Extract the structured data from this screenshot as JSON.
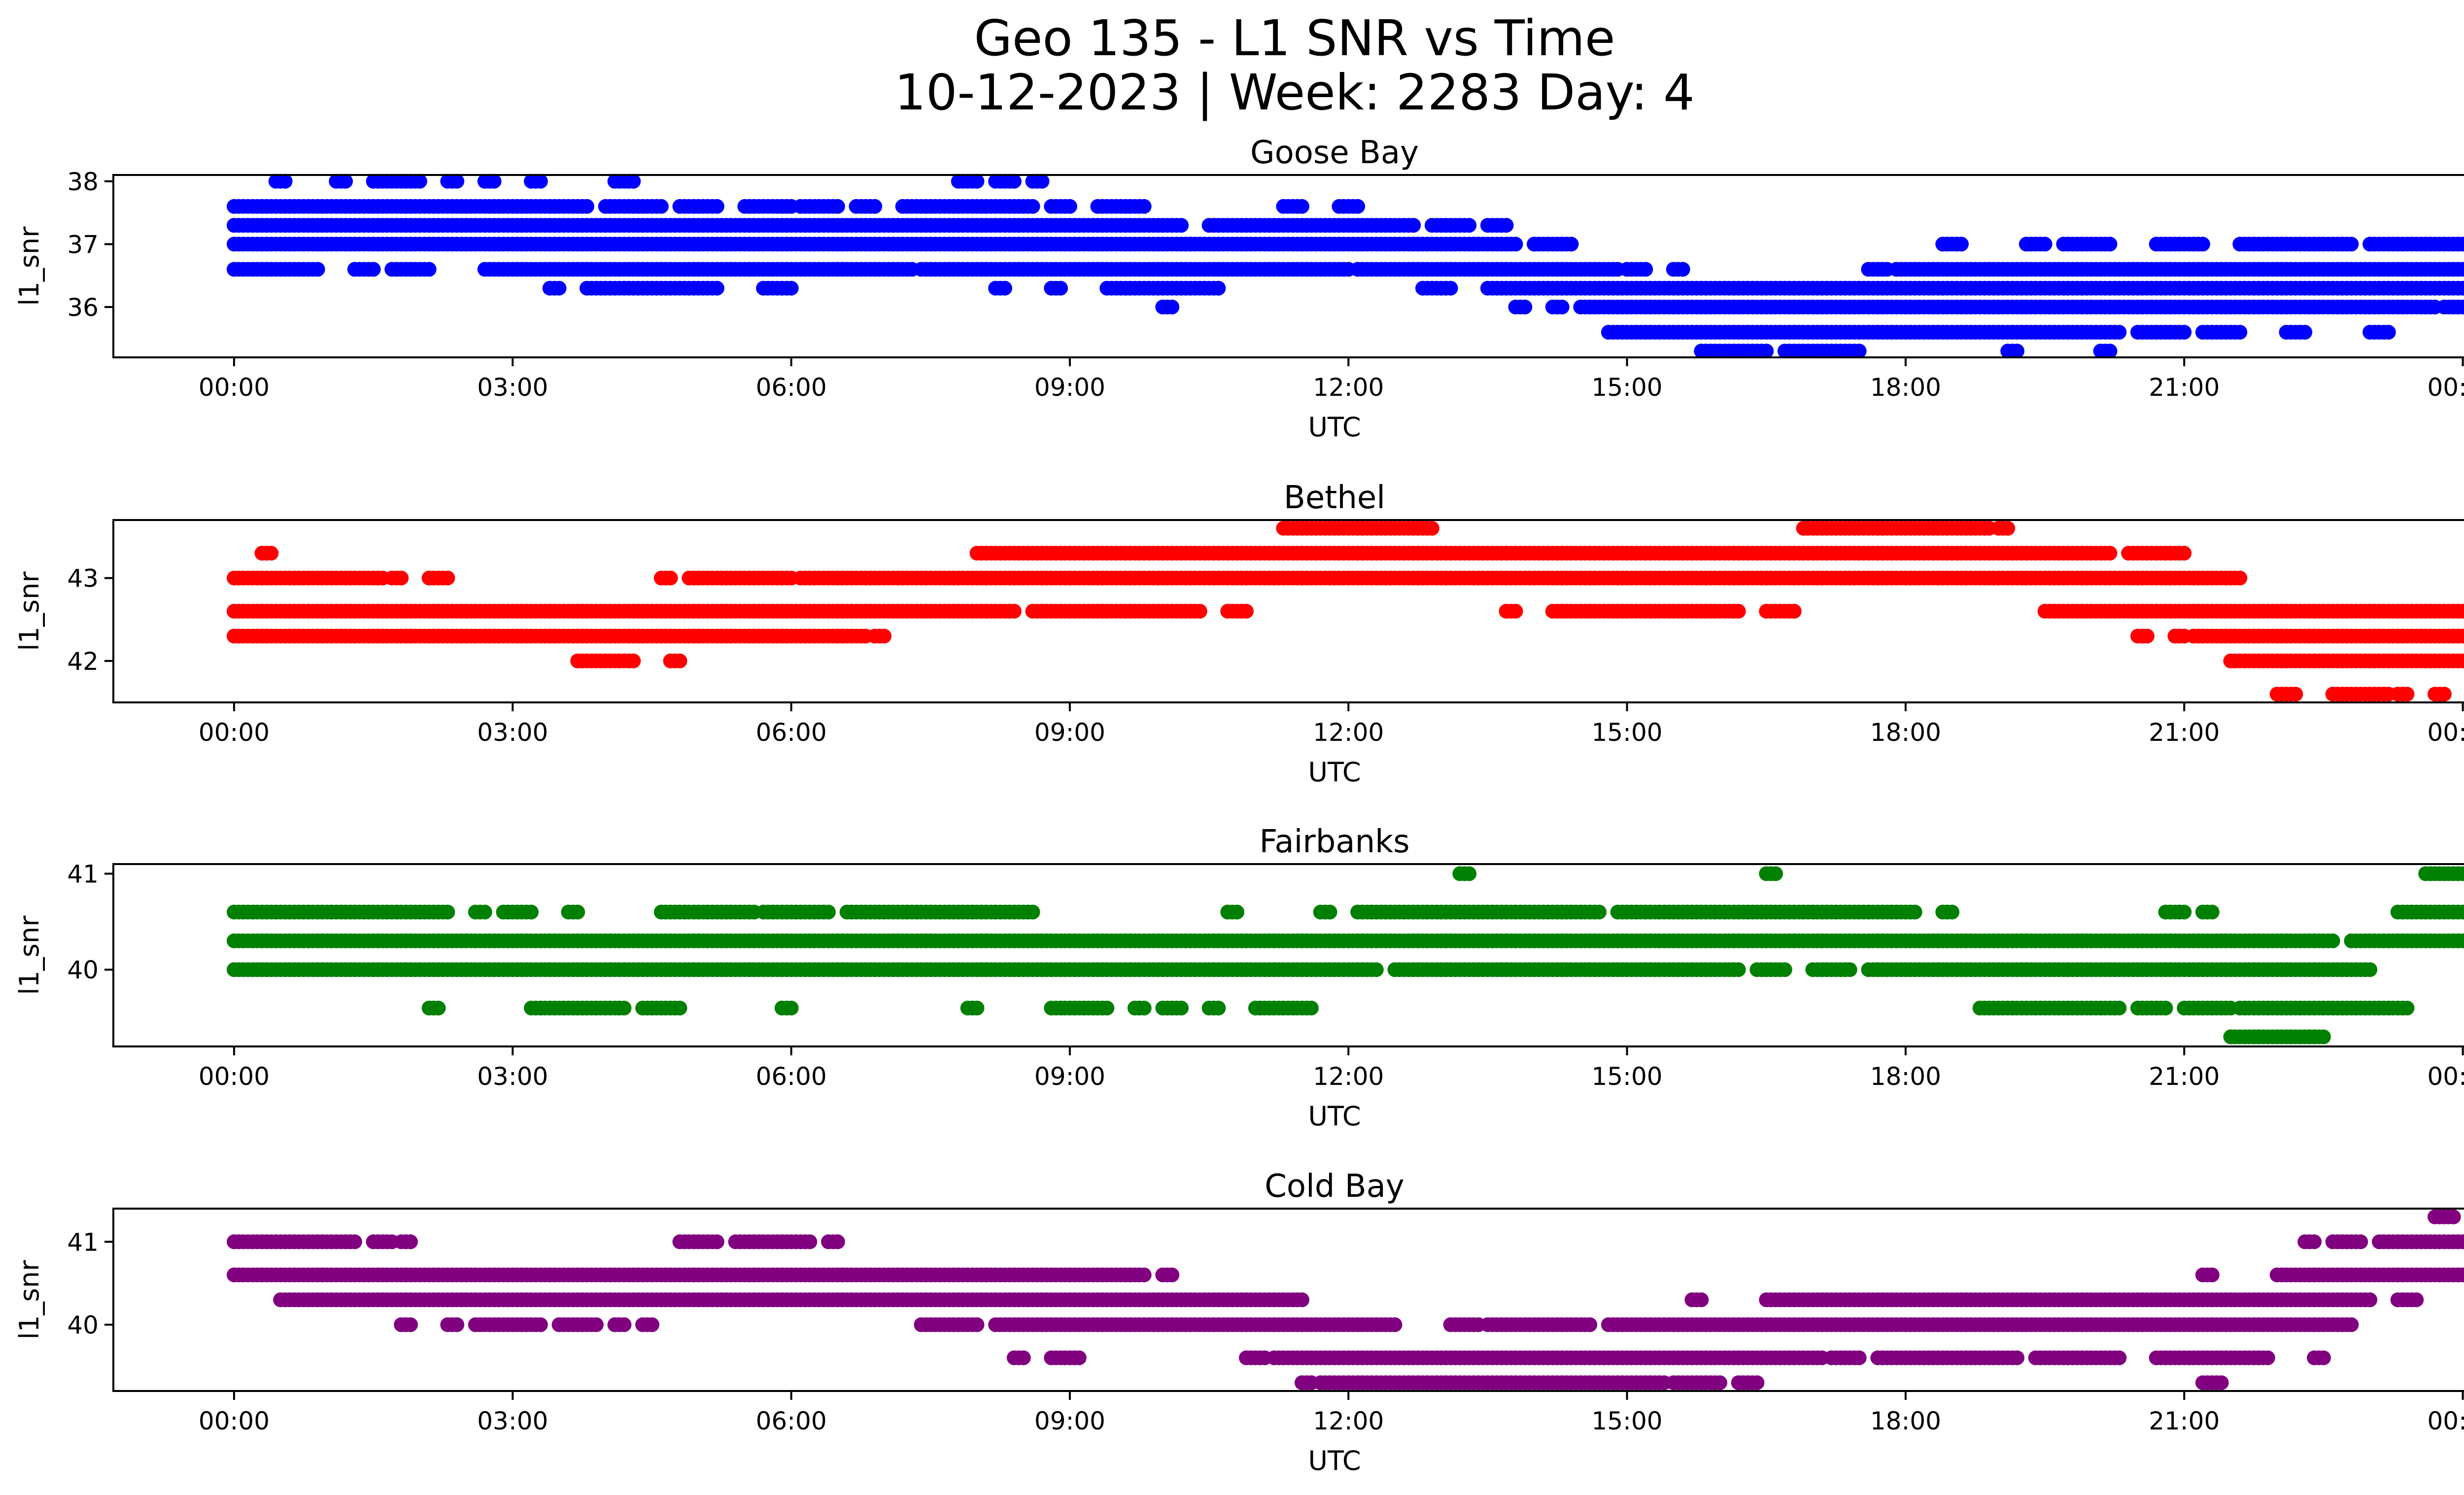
{
  "figure": {
    "title_line1": "Geo 135 - L1 SNR vs Time",
    "title_line2": "10-12-2023 | Week: 2283 Day: 4"
  },
  "chart_data": [
    {
      "type": "scatter",
      "title": "Goose Bay",
      "xlabel": "UTC",
      "ylabel": "l1_snr",
      "color": "#0000ff",
      "xlim": [
        -1.3,
        25.0
      ],
      "ylim": [
        35.2,
        38.1
      ],
      "xticks": [
        "00:00",
        "03:00",
        "06:00",
        "09:00",
        "12:00",
        "15:00",
        "18:00",
        "21:00",
        "00:00"
      ],
      "xtick_hours": [
        0,
        3,
        6,
        9,
        12,
        15,
        18,
        21,
        24
      ],
      "yticks": [
        36,
        37,
        38
      ],
      "series": [
        {
          "level": 38.0,
          "ranges": [
            [
              0.45,
              0.55
            ],
            [
              1.1,
              1.2
            ],
            [
              1.5,
              2.0
            ],
            [
              2.3,
              2.4
            ],
            [
              2.7,
              2.8
            ],
            [
              3.2,
              3.3
            ],
            [
              4.1,
              4.3
            ],
            [
              7.8,
              8.0
            ],
            [
              8.2,
              8.4
            ],
            [
              8.6,
              8.7
            ]
          ]
        },
        {
          "level": 37.6,
          "ranges": [
            [
              0.0,
              3.8
            ],
            [
              4.0,
              4.6
            ],
            [
              4.8,
              5.2
            ],
            [
              5.5,
              6.0
            ],
            [
              6.1,
              6.5
            ],
            [
              6.7,
              6.9
            ],
            [
              7.2,
              8.6
            ],
            [
              8.8,
              9.0
            ],
            [
              9.3,
              9.8
            ],
            [
              11.3,
              11.5
            ],
            [
              11.9,
              12.1
            ]
          ]
        },
        {
          "level": 37.3,
          "ranges": [
            [
              0.0,
              10.2
            ],
            [
              10.5,
              12.7
            ],
            [
              12.9,
              13.3
            ],
            [
              13.5,
              13.7
            ]
          ]
        },
        {
          "level": 37.0,
          "ranges": [
            [
              0.0,
              13.8
            ],
            [
              14.0,
              14.4
            ],
            [
              20.7,
              21.2
            ],
            [
              21.6,
              22.8
            ],
            [
              23.0,
              24.0
            ],
            [
              18.4,
              18.6
            ],
            [
              19.3,
              19.5
            ],
            [
              19.7,
              20.2
            ]
          ]
        },
        {
          "level": 36.6,
          "ranges": [
            [
              0.0,
              0.9
            ],
            [
              1.3,
              1.5
            ],
            [
              1.7,
              2.1
            ],
            [
              2.7,
              7.3
            ],
            [
              7.4,
              12.0
            ],
            [
              12.1,
              14.9
            ],
            [
              15.0,
              15.2
            ],
            [
              15.5,
              15.6
            ],
            [
              17.6,
              17.8
            ],
            [
              17.9,
              24.0
            ]
          ]
        },
        {
          "level": 36.3,
          "ranges": [
            [
              3.4,
              3.5
            ],
            [
              3.8,
              5.2
            ],
            [
              5.7,
              6.0
            ],
            [
              8.2,
              8.3
            ],
            [
              8.8,
              8.9
            ],
            [
              9.4,
              10.6
            ],
            [
              12.8,
              13.1
            ],
            [
              13.5,
              24.0
            ]
          ]
        },
        {
          "level": 36.0,
          "ranges": [
            [
              10.0,
              10.1
            ],
            [
              13.8,
              13.9
            ],
            [
              14.2,
              14.3
            ],
            [
              14.5,
              23.7
            ],
            [
              23.8,
              24.0
            ]
          ]
        },
        {
          "level": 35.6,
          "ranges": [
            [
              14.8,
              20.3
            ],
            [
              20.5,
              21.0
            ],
            [
              21.2,
              21.6
            ],
            [
              22.1,
              22.3
            ],
            [
              23.0,
              23.2
            ]
          ]
        },
        {
          "level": 35.3,
          "ranges": [
            [
              15.8,
              16.5
            ],
            [
              16.7,
              17.5
            ],
            [
              19.1,
              19.2
            ],
            [
              20.1,
              20.2
            ]
          ]
        }
      ]
    },
    {
      "type": "scatter",
      "title": "Bethel",
      "xlabel": "UTC",
      "ylabel": "l1_snr",
      "color": "#ff0000",
      "xlim": [
        -1.3,
        25.0
      ],
      "ylim": [
        41.5,
        43.7
      ],
      "xticks": [
        "00:00",
        "03:00",
        "06:00",
        "09:00",
        "12:00",
        "15:00",
        "18:00",
        "21:00",
        "00:00"
      ],
      "xtick_hours": [
        0,
        3,
        6,
        9,
        12,
        15,
        18,
        21,
        24
      ],
      "yticks": [
        42,
        43
      ],
      "series": [
        {
          "level": 43.6,
          "ranges": [
            [
              11.3,
              12.9
            ],
            [
              16.9,
              18.9
            ],
            [
              19.0,
              19.1
            ]
          ]
        },
        {
          "level": 43.3,
          "ranges": [
            [
              0.3,
              0.4
            ],
            [
              8.0,
              20.2
            ],
            [
              20.4,
              21.0
            ]
          ]
        },
        {
          "level": 43.0,
          "ranges": [
            [
              0.0,
              1.6
            ],
            [
              1.7,
              1.8
            ],
            [
              2.1,
              2.3
            ],
            [
              4.6,
              4.7
            ],
            [
              4.9,
              6.0
            ],
            [
              6.1,
              21.6
            ]
          ]
        },
        {
          "level": 42.6,
          "ranges": [
            [
              0.0,
              8.4
            ],
            [
              8.6,
              10.4
            ],
            [
              10.7,
              10.9
            ],
            [
              13.7,
              13.8
            ],
            [
              14.2,
              16.2
            ],
            [
              16.5,
              16.8
            ],
            [
              19.5,
              24.0
            ]
          ]
        },
        {
          "level": 42.3,
          "ranges": [
            [
              0.0,
              6.8
            ],
            [
              6.9,
              7.0
            ],
            [
              20.5,
              20.6
            ],
            [
              20.9,
              21.0
            ],
            [
              21.1,
              24.0
            ]
          ]
        },
        {
          "level": 42.0,
          "ranges": [
            [
              3.7,
              4.3
            ],
            [
              4.7,
              4.8
            ],
            [
              21.5,
              24.0
            ]
          ]
        },
        {
          "level": 41.6,
          "ranges": [
            [
              22.0,
              22.2
            ],
            [
              22.6,
              23.2
            ],
            [
              23.3,
              23.4
            ],
            [
              23.7,
              23.8
            ]
          ]
        }
      ]
    },
    {
      "type": "scatter",
      "title": "Fairbanks",
      "xlabel": "UTC",
      "ylabel": "l1_snr",
      "color": "#008000",
      "xlim": [
        -1.3,
        25.0
      ],
      "ylim": [
        39.2,
        41.1
      ],
      "xticks": [
        "00:00",
        "03:00",
        "06:00",
        "09:00",
        "12:00",
        "15:00",
        "18:00",
        "21:00",
        "00:00"
      ],
      "xtick_hours": [
        0,
        3,
        6,
        9,
        12,
        15,
        18,
        21,
        24
      ],
      "yticks": [
        40,
        41
      ],
      "series": [
        {
          "level": 41.0,
          "ranges": [
            [
              13.2,
              13.3
            ],
            [
              16.5,
              16.6
            ],
            [
              23.6,
              24.0
            ]
          ]
        },
        {
          "level": 40.6,
          "ranges": [
            [
              0.0,
              2.3
            ],
            [
              2.6,
              2.7
            ],
            [
              2.9,
              3.2
            ],
            [
              3.6,
              3.7
            ],
            [
              4.6,
              5.6
            ],
            [
              5.7,
              6.4
            ],
            [
              6.6,
              8.6
            ],
            [
              10.7,
              10.8
            ],
            [
              11.7,
              11.8
            ],
            [
              12.1,
              14.7
            ],
            [
              14.9,
              18.1
            ],
            [
              18.4,
              18.5
            ],
            [
              20.8,
              21.0
            ],
            [
              21.2,
              21.3
            ],
            [
              23.3,
              24.0
            ]
          ]
        },
        {
          "level": 40.3,
          "ranges": [
            [
              0.0,
              22.6
            ],
            [
              22.8,
              24.0
            ]
          ]
        },
        {
          "level": 40.0,
          "ranges": [
            [
              0.0,
              12.3
            ],
            [
              12.5,
              16.2
            ],
            [
              16.4,
              16.7
            ],
            [
              17.0,
              17.4
            ],
            [
              17.6,
              23.0
            ]
          ]
        },
        {
          "level": 39.6,
          "ranges": [
            [
              2.1,
              2.2
            ],
            [
              3.2,
              4.2
            ],
            [
              4.4,
              4.8
            ],
            [
              5.9,
              6.0
            ],
            [
              7.9,
              8.0
            ],
            [
              8.8,
              9.4
            ],
            [
              9.7,
              9.8
            ],
            [
              10.0,
              10.2
            ],
            [
              10.5,
              10.6
            ],
            [
              11.0,
              11.6
            ],
            [
              18.8,
              20.3
            ],
            [
              20.5,
              20.8
            ],
            [
              21.0,
              21.5
            ],
            [
              21.6,
              23.4
            ]
          ]
        },
        {
          "level": 39.3,
          "ranges": [
            [
              21.5,
              22.5
            ]
          ]
        }
      ]
    },
    {
      "type": "scatter",
      "title": "Cold Bay",
      "xlabel": "UTC",
      "ylabel": "l1_snr",
      "color": "#800080",
      "xlim": [
        -1.3,
        25.0
      ],
      "ylim": [
        39.2,
        41.4
      ],
      "xticks": [
        "00:00",
        "03:00",
        "06:00",
        "09:00",
        "12:00",
        "15:00",
        "18:00",
        "21:00",
        "00:00"
      ],
      "xtick_hours": [
        0,
        3,
        6,
        9,
        12,
        15,
        18,
        21,
        24
      ],
      "yticks": [
        40,
        41
      ],
      "series": [
        {
          "level": 41.3,
          "ranges": [
            [
              23.7,
              23.9
            ]
          ]
        },
        {
          "level": 41.0,
          "ranges": [
            [
              0.0,
              1.3
            ],
            [
              1.5,
              1.7
            ],
            [
              1.8,
              1.9
            ],
            [
              4.8,
              5.2
            ],
            [
              5.4,
              6.2
            ],
            [
              6.4,
              6.5
            ],
            [
              22.3,
              22.4
            ],
            [
              22.6,
              22.9
            ],
            [
              23.1,
              24.0
            ]
          ]
        },
        {
          "level": 40.6,
          "ranges": [
            [
              0.0,
              9.8
            ],
            [
              10.0,
              10.1
            ],
            [
              21.2,
              21.3
            ],
            [
              22.0,
              24.0
            ]
          ]
        },
        {
          "level": 40.3,
          "ranges": [
            [
              0.5,
              11.5
            ],
            [
              15.7,
              15.8
            ],
            [
              16.5,
              23.0
            ],
            [
              23.3,
              23.5
            ]
          ]
        },
        {
          "level": 40.0,
          "ranges": [
            [
              1.8,
              1.9
            ],
            [
              2.3,
              2.4
            ],
            [
              2.6,
              3.3
            ],
            [
              3.5,
              3.9
            ],
            [
              4.1,
              4.2
            ],
            [
              4.4,
              4.5
            ],
            [
              7.4,
              8.0
            ],
            [
              8.2,
              12.5
            ],
            [
              13.1,
              13.4
            ],
            [
              13.5,
              14.6
            ],
            [
              14.8,
              22.8
            ]
          ]
        },
        {
          "level": 39.6,
          "ranges": [
            [
              8.4,
              8.5
            ],
            [
              8.8,
              9.1
            ],
            [
              10.9,
              11.1
            ],
            [
              11.2,
              17.1
            ],
            [
              17.2,
              17.5
            ],
            [
              17.7,
              19.2
            ],
            [
              19.4,
              20.3
            ],
            [
              20.7,
              21.9
            ],
            [
              22.4,
              22.5
            ]
          ]
        },
        {
          "level": 39.3,
          "ranges": [
            [
              11.5,
              11.6
            ],
            [
              11.7,
              15.4
            ],
            [
              15.5,
              16.0
            ],
            [
              16.2,
              16.4
            ],
            [
              21.2,
              21.4
            ]
          ]
        }
      ]
    }
  ]
}
